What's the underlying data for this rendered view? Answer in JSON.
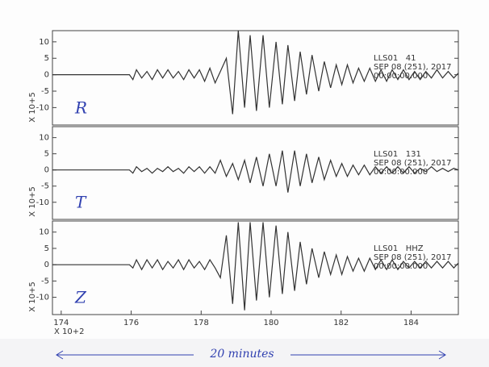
{
  "chart_data": [
    {
      "type": "line",
      "ylabel": "X 10+5",
      "channel": "R",
      "info": [
        "LLS01   41",
        "SEP 08 (251), 2017",
        "00:00:00.000"
      ],
      "xlim": [
        173.75,
        185.35
      ],
      "ylim": [
        -15.3,
        13.4
      ],
      "yticks": [
        -10,
        -5,
        0,
        5,
        10
      ],
      "series": [
        {
          "color": "#333333",
          "x": [
            173.75,
            175.95,
            176.05,
            176.15,
            176.3,
            176.45,
            176.6,
            176.75,
            176.9,
            177.05,
            177.2,
            177.35,
            177.5,
            177.65,
            177.8,
            177.95,
            178.1,
            178.25,
            178.4,
            178.55,
            178.72,
            178.9,
            179.06,
            179.24,
            179.4,
            179.58,
            179.77,
            179.95,
            180.14,
            180.32,
            180.48,
            180.67,
            180.83,
            181.01,
            181.17,
            181.36,
            181.52,
            181.7,
            181.86,
            182.02,
            182.18,
            182.34,
            182.5,
            182.66,
            182.82,
            182.98,
            183.14,
            183.3,
            183.46,
            183.62,
            183.78,
            183.94,
            184.1,
            184.26,
            184.42,
            184.58,
            184.74,
            184.9,
            185.06,
            185.22,
            185.35
          ],
          "values": [
            0,
            0,
            -1.5,
            1.5,
            -1,
            1,
            -1.5,
            1.5,
            -1,
            1.5,
            -1,
            1,
            -1.5,
            1.5,
            -1,
            1.5,
            -2,
            2,
            -2.5,
            1,
            5,
            -12,
            13.5,
            -10,
            12,
            -11,
            12,
            -10,
            10,
            -9,
            9,
            -8,
            7,
            -6,
            6,
            -5,
            4,
            -4,
            3,
            -3,
            3,
            -2.5,
            2,
            -2,
            2,
            -2,
            1.5,
            -2,
            1.5,
            -1.5,
            1.5,
            -1.5,
            1,
            -1.5,
            1,
            -1,
            1.5,
            -1,
            1,
            -1,
            0.5
          ]
        }
      ]
    },
    {
      "type": "line",
      "ylabel": "X 10+5",
      "channel": "T",
      "info": [
        "LLS01   131",
        "SEP 08 (251), 2017",
        "00:00:00.000"
      ],
      "xlim": [
        173.75,
        185.35
      ],
      "ylim": [
        -15.3,
        13.4
      ],
      "yticks": [
        -10,
        -5,
        0,
        5,
        10
      ],
      "series": [
        {
          "color": "#333333",
          "x": [
            173.75,
            175.95,
            176.05,
            176.15,
            176.3,
            176.45,
            176.6,
            176.75,
            176.9,
            177.05,
            177.2,
            177.35,
            177.5,
            177.65,
            177.8,
            177.95,
            178.1,
            178.25,
            178.4,
            178.55,
            178.72,
            178.9,
            179.06,
            179.24,
            179.4,
            179.58,
            179.77,
            179.95,
            180.14,
            180.32,
            180.48,
            180.67,
            180.83,
            181.01,
            181.17,
            181.36,
            181.52,
            181.7,
            181.86,
            182.02,
            182.18,
            182.34,
            182.5,
            182.66,
            182.82,
            182.98,
            183.14,
            183.3,
            183.46,
            183.62,
            183.78,
            183.94,
            184.1,
            184.26,
            184.42,
            184.58,
            184.74,
            184.9,
            185.06,
            185.22,
            185.35
          ],
          "values": [
            0,
            0,
            -1,
            1,
            -0.5,
            0.5,
            -1,
            0.5,
            -0.5,
            1,
            -0.5,
            0.5,
            -1,
            1,
            -0.5,
            1,
            -1,
            1,
            -1,
            3,
            -2,
            2,
            -3,
            3,
            -4,
            4,
            -5,
            5,
            -5,
            6,
            -7,
            6,
            -5,
            5,
            -4,
            4,
            -3,
            3,
            -2,
            2,
            -2,
            1.5,
            -1.5,
            1.5,
            -1.5,
            1,
            -1,
            1,
            -1,
            1,
            -1,
            1,
            -1,
            0.5,
            -0.5,
            1,
            -0.5,
            0.5,
            -0.5,
            0.5,
            0
          ]
        }
      ]
    },
    {
      "type": "line",
      "ylabel": "X 10+5",
      "channel": "Z",
      "info": [
        "LLS01   HHZ",
        "SEP 08 (251), 2017",
        "00:00:00.000"
      ],
      "xlim": [
        173.75,
        185.35
      ],
      "ylim": [
        -15.3,
        13.4
      ],
      "yticks": [
        -10,
        -5,
        0,
        5,
        10
      ],
      "xticks": [
        174,
        176,
        178,
        180,
        182,
        184
      ],
      "xlabel": "X 10+2",
      "series": [
        {
          "color": "#333333",
          "x": [
            173.75,
            175.95,
            176.05,
            176.15,
            176.3,
            176.45,
            176.6,
            176.75,
            176.9,
            177.05,
            177.2,
            177.35,
            177.5,
            177.65,
            177.8,
            177.95,
            178.1,
            178.25,
            178.4,
            178.55,
            178.72,
            178.9,
            179.06,
            179.24,
            179.4,
            179.58,
            179.77,
            179.95,
            180.14,
            180.32,
            180.48,
            180.67,
            180.83,
            181.01,
            181.17,
            181.36,
            181.52,
            181.7,
            181.86,
            182.02,
            182.18,
            182.34,
            182.5,
            182.66,
            182.82,
            182.98,
            183.14,
            183.3,
            183.46,
            183.62,
            183.78,
            183.94,
            184.1,
            184.26,
            184.42,
            184.58,
            184.74,
            184.9,
            185.06,
            185.22,
            185.35
          ],
          "values": [
            0,
            0,
            -1,
            1.5,
            -1.5,
            1.5,
            -1,
            1.5,
            -1.5,
            1,
            -1,
            1.5,
            -1.5,
            1.5,
            -1,
            1,
            -1.5,
            1.5,
            -1,
            -4,
            9,
            -12,
            13,
            -14,
            13,
            -11,
            13,
            -10,
            12,
            -9,
            10,
            -8,
            7,
            -6,
            5,
            -4,
            4,
            -3,
            3,
            -3,
            2.5,
            -2,
            2,
            -2,
            2,
            -1.5,
            1.5,
            -1.5,
            1.5,
            -1.5,
            1,
            -1,
            1,
            -1,
            1,
            -1,
            1,
            -1,
            1,
            -1,
            0.5
          ]
        }
      ]
    }
  ],
  "annotation": "20 minutes"
}
